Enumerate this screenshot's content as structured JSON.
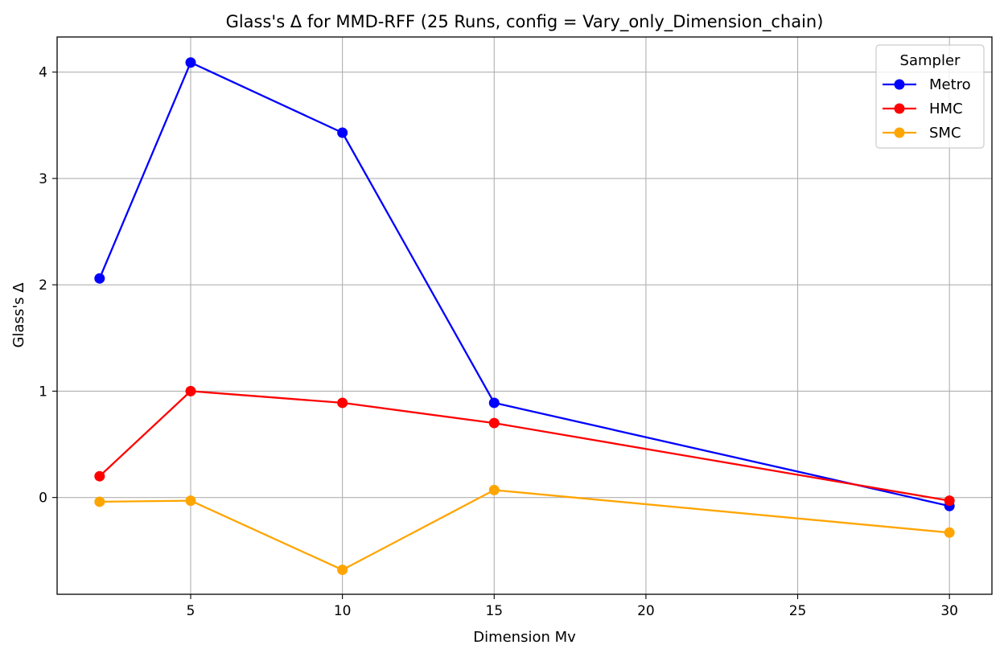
{
  "chart_data": {
    "type": "line",
    "title": "Glass's Δ for MMD-RFF (25 Runs, config = Vary_only_Dimension_chain)",
    "xlabel": "Dimension Mv",
    "ylabel": "Glass's Δ",
    "x": [
      2,
      5,
      10,
      15,
      30
    ],
    "xlim": [
      0.6,
      31.4
    ],
    "ylim": [
      -0.91,
      4.33
    ],
    "xticks": [
      5,
      10,
      15,
      20,
      25,
      30
    ],
    "yticks": [
      0,
      1,
      2,
      3,
      4
    ],
    "grid": true,
    "marker": "circle",
    "legend": {
      "title": "Sampler",
      "placement": "top-right"
    },
    "series": [
      {
        "name": "Metro",
        "color": "#0000ff",
        "values": [
          2.06,
          4.09,
          3.43,
          0.89,
          -0.08
        ]
      },
      {
        "name": "HMC",
        "color": "#ff0000",
        "values": [
          0.2,
          1.0,
          0.89,
          0.7,
          -0.03
        ]
      },
      {
        "name": "SMC",
        "color": "#ffa500",
        "values": [
          -0.04,
          -0.03,
          -0.68,
          0.07,
          -0.33
        ]
      }
    ]
  }
}
